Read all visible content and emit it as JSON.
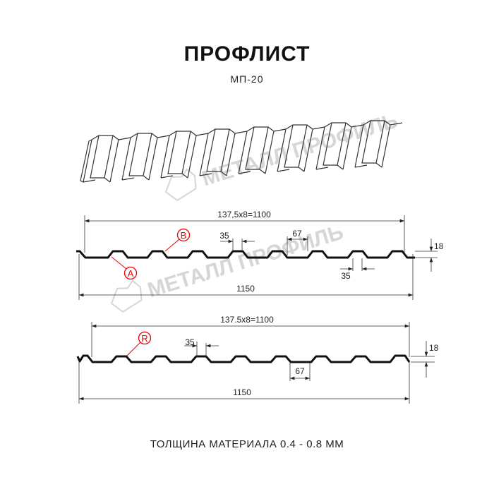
{
  "header": {
    "title": "ПРОФЛИСТ",
    "subtitle": "МП-20"
  },
  "watermark": {
    "text": "МЕТАЛЛ ПРОФИЛЬ",
    "color": "#d6d6d6"
  },
  "profile_1": {
    "pitch_label": "137,5x8=1100",
    "width_label": "1150",
    "top_flat_label": "35",
    "bottom_flat_label": "35",
    "rib_base_label": "67",
    "height_label": "18",
    "marker_a": "A",
    "marker_b": "B"
  },
  "profile_2": {
    "pitch_label": "137.5x8=1100",
    "width_label": "1150",
    "top_flat_label": "35",
    "rib_base_label": "67",
    "height_label": "18",
    "marker_r": "R"
  },
  "footer": {
    "thickness": "ТОЛЩИНА МАТЕРИАЛА 0.4 - 0.8 ММ"
  },
  "colors": {
    "line": "#111111",
    "marker": "#e00000",
    "dimension": "#333333"
  }
}
